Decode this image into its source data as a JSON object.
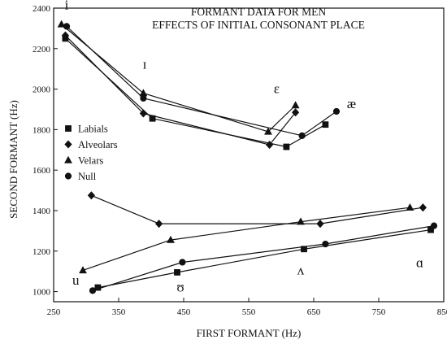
{
  "chart_data": {
    "type": "line",
    "title": "FORMANT DATA FOR MEN",
    "subtitle": "EFFECTS OF INITIAL CONSONANT PLACE",
    "xlabel": "FIRST FORMANT (Hz)",
    "ylabel": "SECOND FORMANT (Hz)",
    "xlim": [
      250,
      850
    ],
    "ylim": [
      950,
      2400
    ],
    "xticks": [
      250,
      350,
      450,
      550,
      650,
      750,
      850
    ],
    "yticks": [
      1000,
      1200,
      1400,
      1600,
      1800,
      2000,
      2200,
      2400
    ],
    "grid": false,
    "legend_position": "left-middle",
    "series": [
      {
        "name": "Labials",
        "marker": "square",
        "front": [
          [
            268,
            2250
          ],
          [
            402,
            1855
          ],
          [
            608,
            1715
          ],
          [
            668,
            1825
          ]
        ],
        "back": [
          [
            318,
            1020
          ],
          [
            440,
            1095
          ],
          [
            635,
            1210
          ],
          [
            830,
            1305
          ]
        ]
      },
      {
        "name": "Alveolars",
        "marker": "diamond",
        "front": [
          [
            268,
            2265
          ],
          [
            388,
            1880
          ],
          [
            582,
            1725
          ],
          [
            622,
            1885
          ]
        ],
        "back": [
          [
            308,
            1475
          ],
          [
            412,
            1335
          ],
          [
            660,
            1335
          ],
          [
            818,
            1415
          ]
        ]
      },
      {
        "name": "Velars",
        "marker": "triangle",
        "front": [
          [
            262,
            2320
          ],
          [
            388,
            1980
          ],
          [
            580,
            1790
          ],
          [
            622,
            1920
          ]
        ],
        "back": [
          [
            295,
            1105
          ],
          [
            430,
            1255
          ],
          [
            630,
            1345
          ],
          [
            798,
            1415
          ]
        ]
      },
      {
        "name": "Null",
        "marker": "circle",
        "front": [
          [
            270,
            2310
          ],
          [
            388,
            1955
          ],
          [
            632,
            1770
          ],
          [
            685,
            1890
          ]
        ],
        "back": [
          [
            310,
            1005
          ],
          [
            448,
            1145
          ],
          [
            668,
            1235
          ],
          [
            835,
            1325
          ]
        ]
      }
    ],
    "annotations": [
      {
        "text": "i",
        "x": 270,
        "y": 2395
      },
      {
        "text": "ɪ",
        "x": 390,
        "y": 2100
      },
      {
        "text": "ɛ",
        "x": 593,
        "y": 1980
      },
      {
        "text": "æ",
        "x": 708,
        "y": 1905
      },
      {
        "text": "u",
        "x": 284,
        "y": 1035
      },
      {
        "text": "ʊ",
        "x": 445,
        "y": 1000
      },
      {
        "text": "ʌ",
        "x": 630,
        "y": 1085
      },
      {
        "text": "ɑ",
        "x": 813,
        "y": 1120
      }
    ]
  }
}
